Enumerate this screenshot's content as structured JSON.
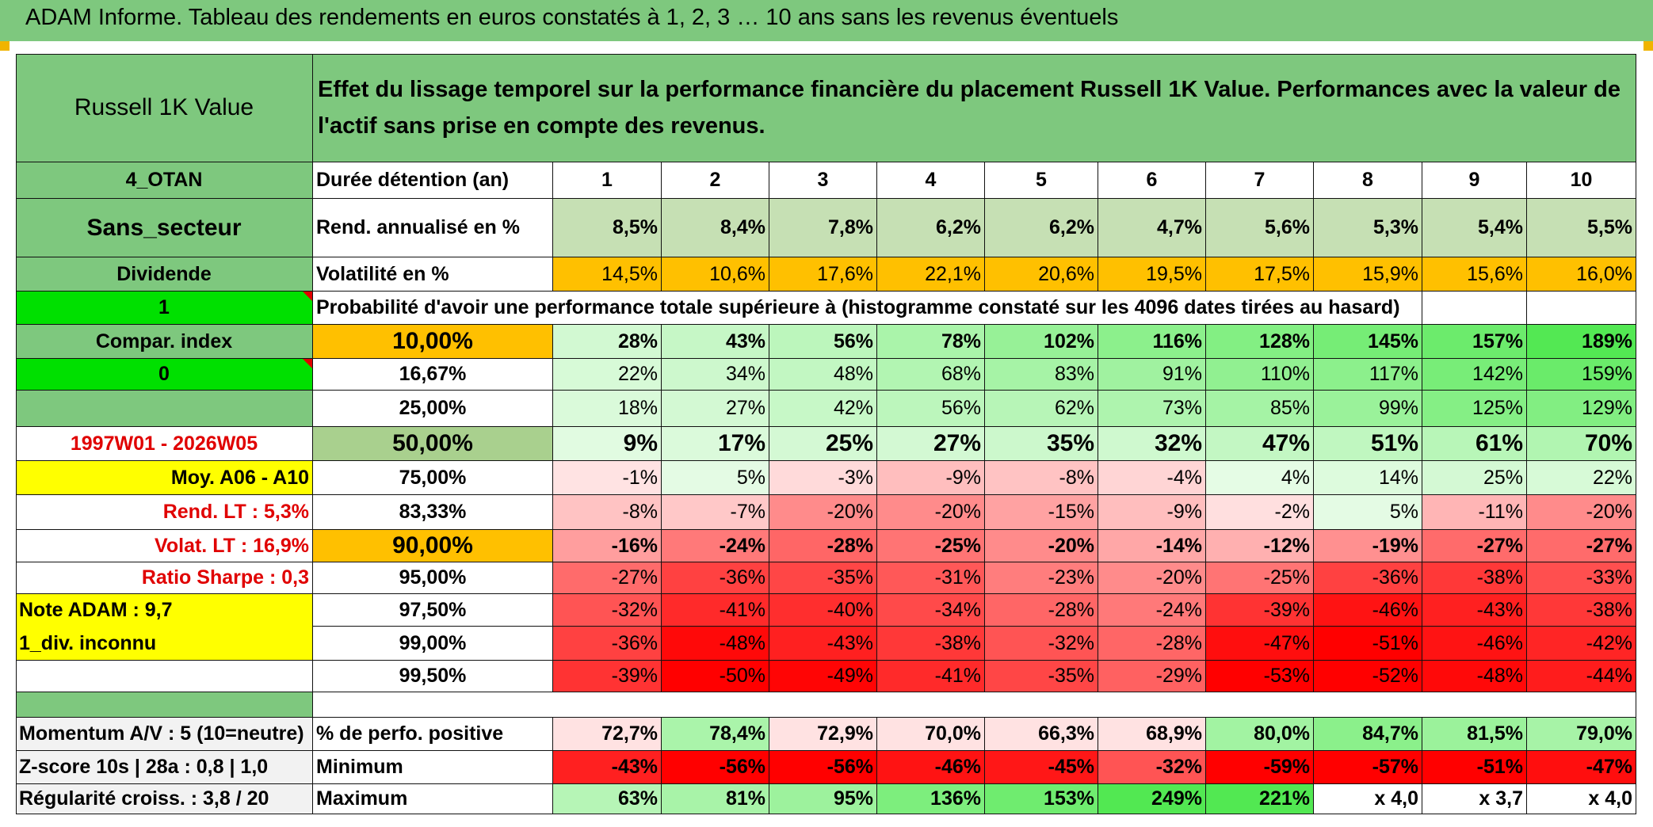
{
  "title": "ADAM Informe. Tableau des rendements en euros constatés à 1, 2, 3 … 10 ans sans les revenus éventuels",
  "colors": {
    "green_header": "#7ec87e",
    "bright_green": "#00e000",
    "orange": "#ffc000",
    "yellow": "#ffff00",
    "light_green": "#c6e0b4",
    "red_text": "#e00000"
  },
  "left": {
    "fund_name": "Russell 1K Value",
    "code": "4_OTAN",
    "sector": "Sans_secteur",
    "dividend": "Dividende",
    "one": "1",
    "compar_index": "Compar. index",
    "zero": "0",
    "period": "1997W01 - 2026W05",
    "moy": "Moy. A06 - A10",
    "rend_lt": "Rend. LT :   5,3%",
    "volat_lt": "Volat. LT :   16,9%",
    "sharpe": "Ratio Sharpe :   0,3",
    "note": "Note ADAM : 9,7",
    "div": "1_div. inconnu",
    "momentum": "Momentum A/V : 5 (10=neutre)",
    "zscore": "Z-score 10s | 28a : 0,8 | 1,0",
    "regularite": "Régularité croiss. : 3,8 / 20"
  },
  "header_text": "Effet du lissage temporel sur la performance financière du placement Russell 1K Value. Performances avec la valeur de l'actif sans prise en compte des revenus.",
  "years_label": "Durée détention (an)",
  "years": [
    "1",
    "2",
    "3",
    "4",
    "5",
    "6",
    "7",
    "8",
    "9",
    "10"
  ],
  "rend_label": "Rend. annualisé en %",
  "rend": [
    "8,5%",
    "8,4%",
    "7,8%",
    "6,2%",
    "6,2%",
    "4,7%",
    "5,6%",
    "5,3%",
    "5,4%",
    "5,5%"
  ],
  "volat_label": "Volatilité en %",
  "volat": [
    "14,5%",
    "10,6%",
    "17,6%",
    "22,1%",
    "20,6%",
    "19,5%",
    "17,5%",
    "15,9%",
    "15,6%",
    "16,0%"
  ],
  "proba_label": "Probabilité d'avoir une performance totale supérieure à (histogramme constaté sur les 4096 dates tirées au hasard)",
  "proba_rows": [
    {
      "pct": "10,00%",
      "vals": [
        "28%",
        "43%",
        "56%",
        "78%",
        "102%",
        "116%",
        "128%",
        "145%",
        "157%",
        "189%"
      ]
    },
    {
      "pct": "16,67%",
      "vals": [
        "22%",
        "34%",
        "48%",
        "68%",
        "83%",
        "91%",
        "110%",
        "117%",
        "142%",
        "159%"
      ]
    },
    {
      "pct": "25,00%",
      "vals": [
        "18%",
        "27%",
        "42%",
        "56%",
        "62%",
        "73%",
        "85%",
        "99%",
        "125%",
        "129%"
      ]
    },
    {
      "pct": "50,00%",
      "vals": [
        "9%",
        "17%",
        "25%",
        "27%",
        "35%",
        "32%",
        "47%",
        "51%",
        "61%",
        "70%"
      ]
    },
    {
      "pct": "75,00%",
      "vals": [
        "-1%",
        "5%",
        "-3%",
        "-9%",
        "-8%",
        "-4%",
        "4%",
        "14%",
        "25%",
        "22%"
      ]
    },
    {
      "pct": "83,33%",
      "vals": [
        "-8%",
        "-7%",
        "-20%",
        "-20%",
        "-15%",
        "-9%",
        "-2%",
        "5%",
        "-11%",
        "-20%"
      ]
    },
    {
      "pct": "90,00%",
      "vals": [
        "-16%",
        "-24%",
        "-28%",
        "-25%",
        "-20%",
        "-14%",
        "-12%",
        "-19%",
        "-27%",
        "-27%"
      ]
    },
    {
      "pct": "95,00%",
      "vals": [
        "-27%",
        "-36%",
        "-35%",
        "-31%",
        "-23%",
        "-20%",
        "-25%",
        "-36%",
        "-38%",
        "-33%"
      ]
    },
    {
      "pct": "97,50%",
      "vals": [
        "-32%",
        "-41%",
        "-40%",
        "-34%",
        "-28%",
        "-24%",
        "-39%",
        "-46%",
        "-43%",
        "-38%"
      ]
    },
    {
      "pct": "99,00%",
      "vals": [
        "-36%",
        "-48%",
        "-43%",
        "-38%",
        "-32%",
        "-28%",
        "-47%",
        "-51%",
        "-46%",
        "-42%"
      ]
    },
    {
      "pct": "99,50%",
      "vals": [
        "-39%",
        "-50%",
        "-49%",
        "-41%",
        "-35%",
        "-29%",
        "-53%",
        "-52%",
        "-48%",
        "-44%"
      ]
    }
  ],
  "stats": [
    {
      "label": "% de perfo. positive",
      "vals": [
        "72,7%",
        "78,4%",
        "72,9%",
        "70,0%",
        "66,3%",
        "68,9%",
        "80,0%",
        "84,7%",
        "81,5%",
        "79,0%"
      ]
    },
    {
      "label": "Minimum",
      "vals": [
        "-43%",
        "-56%",
        "-56%",
        "-46%",
        "-45%",
        "-32%",
        "-59%",
        "-57%",
        "-51%",
        "-47%"
      ]
    },
    {
      "label": "Maximum",
      "vals": [
        "63%",
        "81%",
        "95%",
        "136%",
        "153%",
        "249%",
        "221%",
        "x 4,0",
        "x 3,7",
        "x 4,0"
      ]
    }
  ]
}
